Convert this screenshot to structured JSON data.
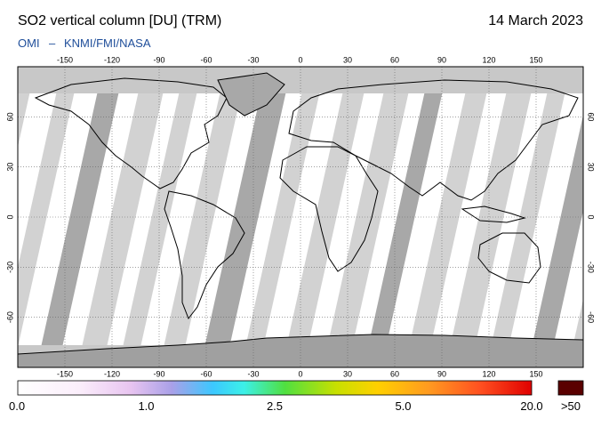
{
  "header": {
    "title": "SO2 vertical column [DU] (TRM)",
    "date": "14 March 2023",
    "source": "OMI",
    "separator": "–",
    "credit": "KNMI/FMI/NASA"
  },
  "map": {
    "lon_range": [
      -180,
      180
    ],
    "lat_range": [
      -90,
      90
    ],
    "lon_ticks": [
      -150,
      -120,
      -90,
      -60,
      -30,
      0,
      30,
      60,
      90,
      120,
      150
    ],
    "lat_ticks": [
      60,
      30,
      0,
      -30,
      -60
    ]
  },
  "colorbar": {
    "labels": [
      "0.0",
      "1.0",
      "2.5",
      "5.0",
      "20.0"
    ],
    "overflow_label": ">50"
  }
}
